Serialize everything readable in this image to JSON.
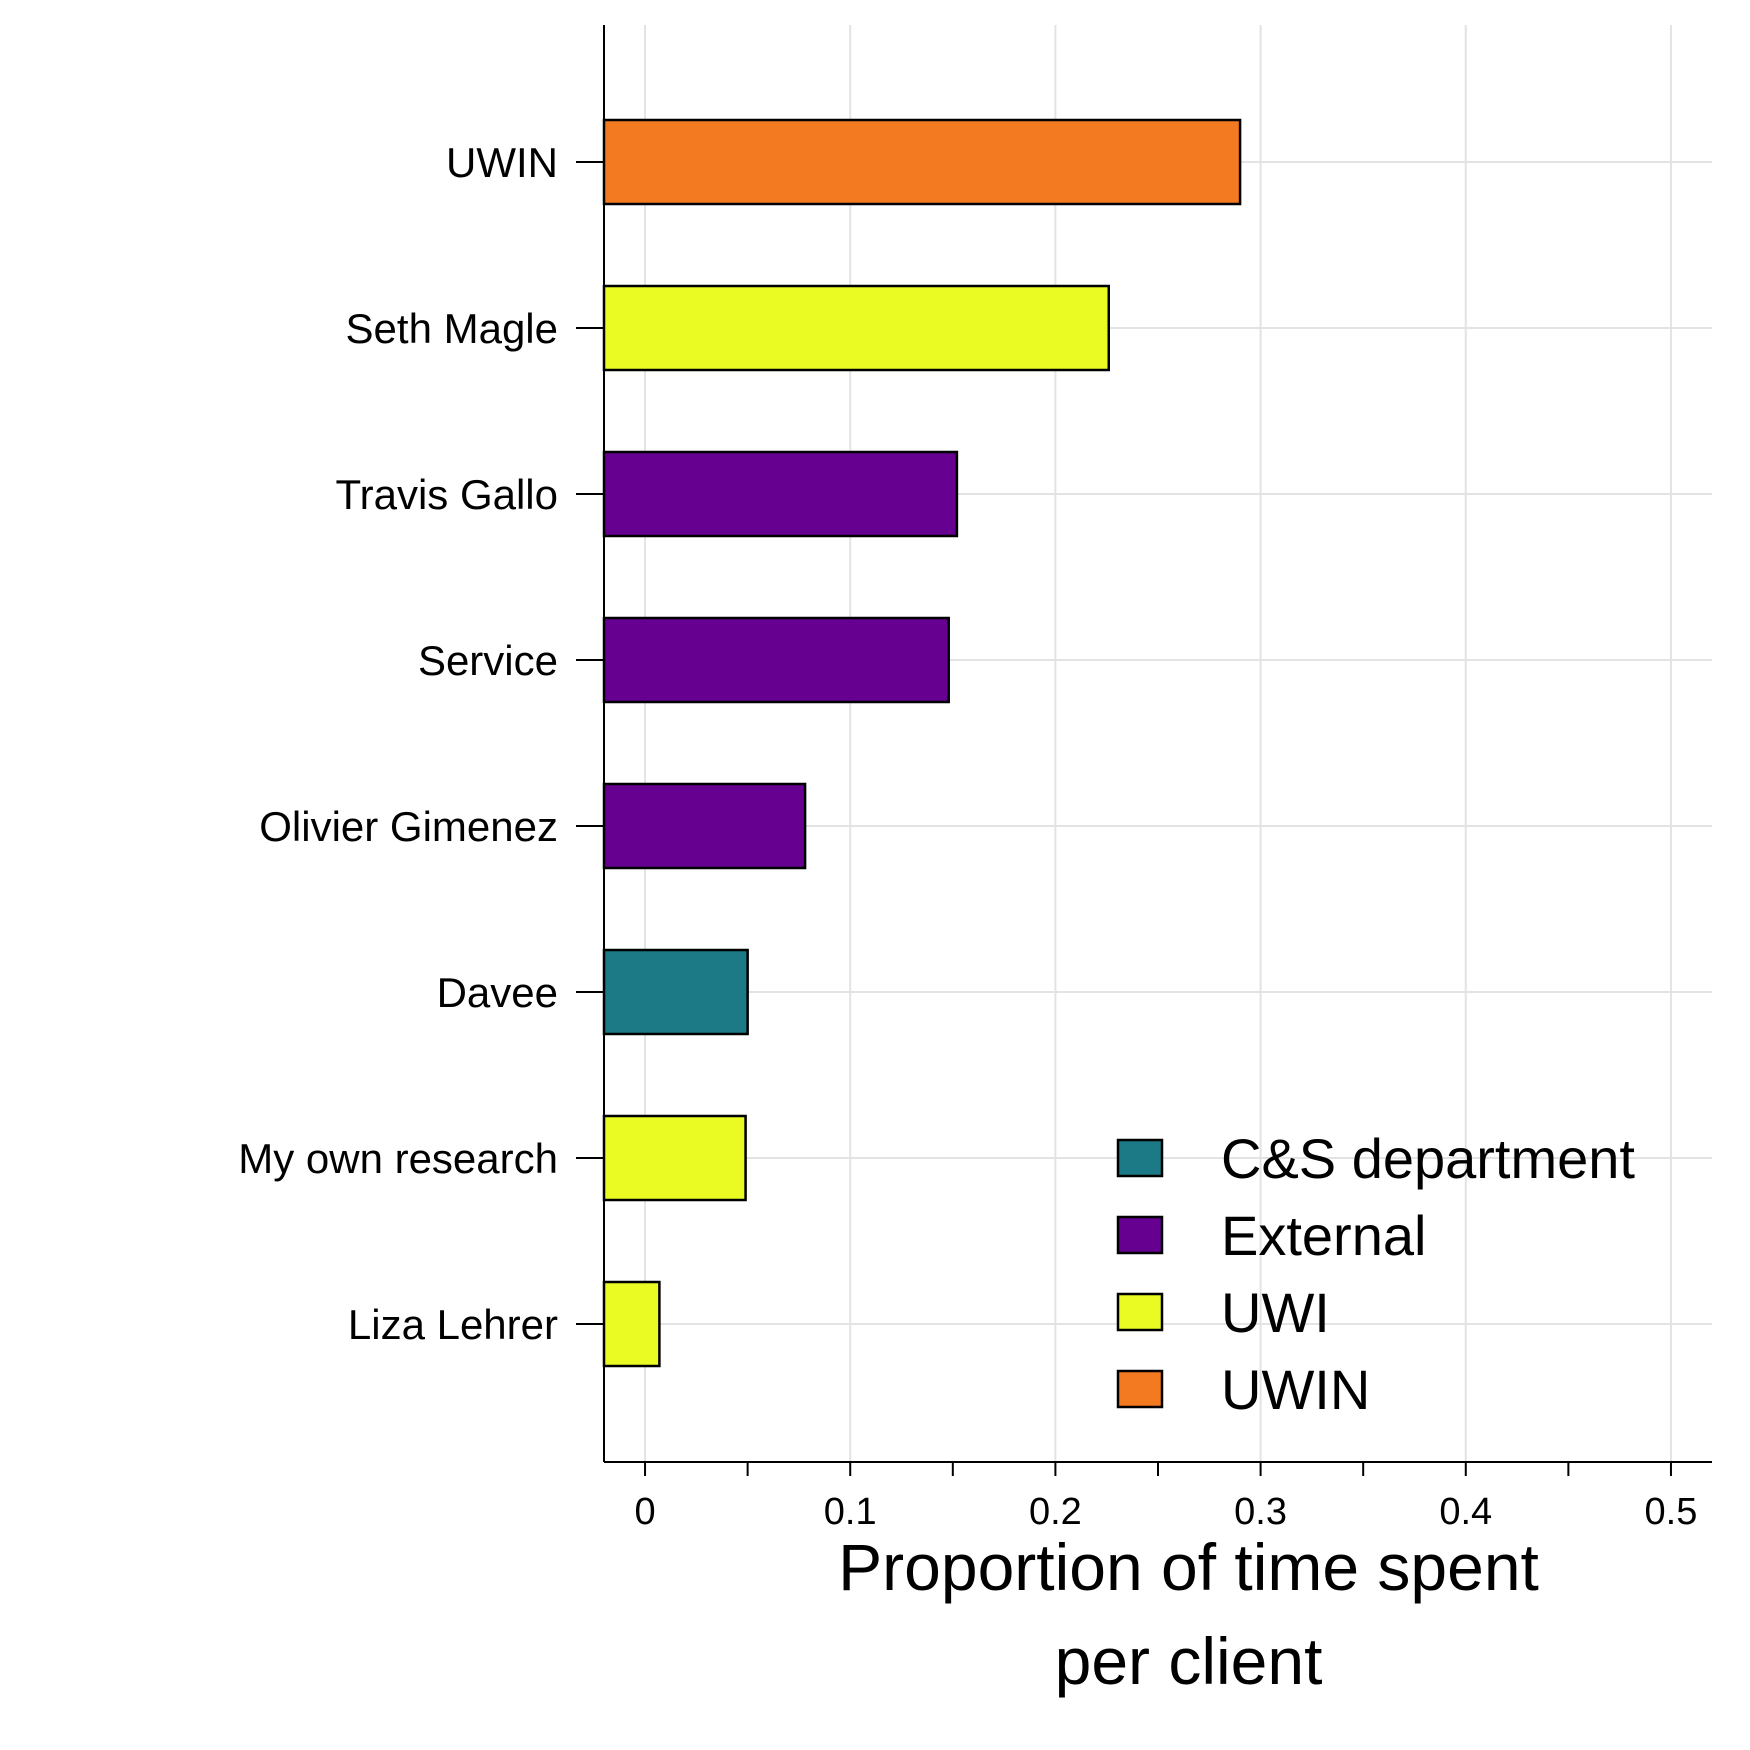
{
  "chart_data": {
    "type": "bar",
    "orientation": "horizontal",
    "title": "",
    "xlabel_lines": [
      "Proportion of time spent",
      "per client"
    ],
    "ylabel": "",
    "xlim": [
      -0.02,
      0.52
    ],
    "xticks": [
      0,
      0.1,
      0.2,
      0.3,
      0.4,
      0.5
    ],
    "xtick_labels": [
      "0",
      "0.1",
      "0.2",
      "0.3",
      "0.4",
      "0.5"
    ],
    "grid": true,
    "legend_position": "bottom-right",
    "categories": [
      "UWIN",
      "Seth Magle",
      "Travis Gallo",
      "Service",
      "Olivier Gimenez",
      "Davee",
      "My own research",
      "Liza Lehrer"
    ],
    "values": [
      0.29,
      0.226,
      0.152,
      0.148,
      0.078,
      0.05,
      0.049,
      0.007
    ],
    "groups": [
      "UWIN",
      "UWI",
      "External",
      "External",
      "External",
      "C&S department",
      "UWI",
      "UWI"
    ],
    "legend": [
      {
        "name": "C&S department",
        "color": "#1b7a86"
      },
      {
        "name": "External",
        "color": "#660091"
      },
      {
        "name": "UWI",
        "color": "#e9fb22"
      },
      {
        "name": "UWIN",
        "color": "#f47a22"
      }
    ]
  }
}
